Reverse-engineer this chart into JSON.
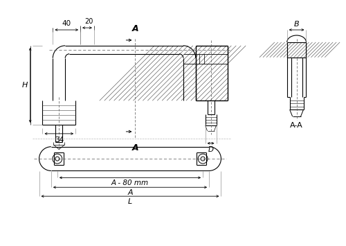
{
  "bg_color": "#ffffff",
  "line_color": "#000000",
  "dim_40": "40",
  "dim_20": "20",
  "dim_34": "34",
  "dim_H": "H",
  "dim_A": "A",
  "dim_B": "B",
  "dim_D": "D",
  "dim_AA": "A-A",
  "dim_A80": "A - 80 mm",
  "dim_L": "L",
  "dim_Abot": "A"
}
